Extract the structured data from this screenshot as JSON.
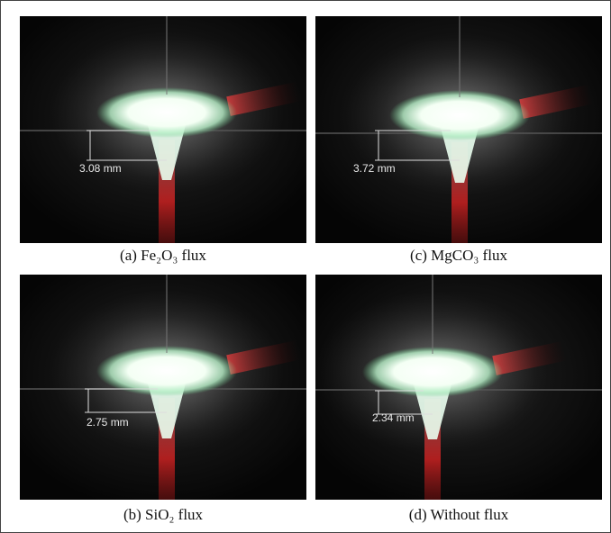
{
  "panels": [
    {
      "caption": "(a) Fe₂O₃ flux",
      "measurement": "3.08 mm"
    },
    {
      "caption": "(c) MgCO₃ flux",
      "measurement": "3.72 mm"
    },
    {
      "caption": "(b) SiO₂ flux",
      "measurement": "2.75 mm"
    },
    {
      "caption": "(d) Without flux",
      "measurement": "2.34 mm"
    }
  ]
}
